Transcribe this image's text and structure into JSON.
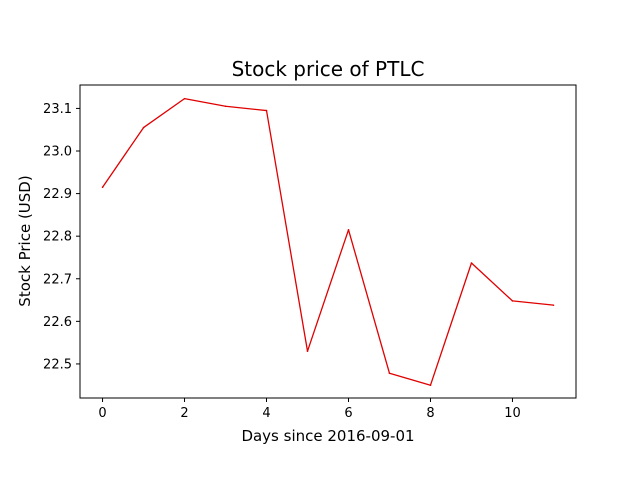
{
  "chart_data": {
    "type": "line",
    "title": "Stock price of PTLC",
    "xlabel": "Days since 2016-09-01",
    "ylabel": "Stock Price (USD)",
    "xlim": [
      -0.55,
      11.55
    ],
    "ylim": [
      22.42,
      23.155
    ],
    "xticks": [
      0,
      2,
      4,
      6,
      8,
      10
    ],
    "yticks": [
      22.5,
      22.6,
      22.7,
      22.8,
      22.9,
      23.0,
      23.1
    ],
    "ytick_labels": [
      "22.5",
      "22.6",
      "22.7",
      "22.8",
      "22.9",
      "23.0",
      "23.1"
    ],
    "grid": false,
    "legend": "none",
    "series": [
      {
        "color": "#e00000",
        "x": [
          0,
          1,
          2,
          3,
          4,
          5,
          6,
          7,
          8,
          9,
          10,
          11
        ],
        "y": [
          22.915,
          23.055,
          23.123,
          23.105,
          23.095,
          22.53,
          22.815,
          22.478,
          22.45,
          22.737,
          22.648,
          22.638
        ]
      }
    ]
  }
}
